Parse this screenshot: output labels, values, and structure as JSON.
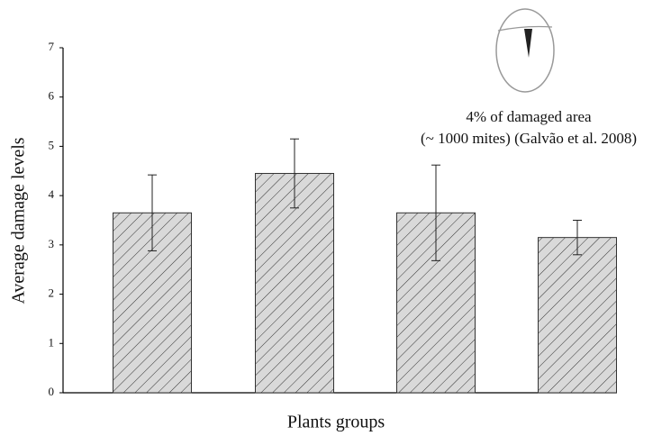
{
  "chart_data": {
    "type": "bar",
    "x_label": "Plants groups",
    "y_label": "Average damage levels",
    "categories": [
      null,
      null,
      null,
      null
    ],
    "values": [
      3.65,
      4.45,
      3.65,
      3.15
    ],
    "errors": [
      0.77,
      0.7,
      0.97,
      0.35
    ],
    "color": "#d9d9d9",
    "ylim": [
      0,
      7
    ],
    "yticks": [
      0,
      1,
      2,
      3,
      4,
      5,
      6,
      7
    ],
    "grid": false,
    "annotation": [
      "4% of damaged area",
      "(~ 1000 mites) (Galvão et al. 2008)"
    ]
  }
}
